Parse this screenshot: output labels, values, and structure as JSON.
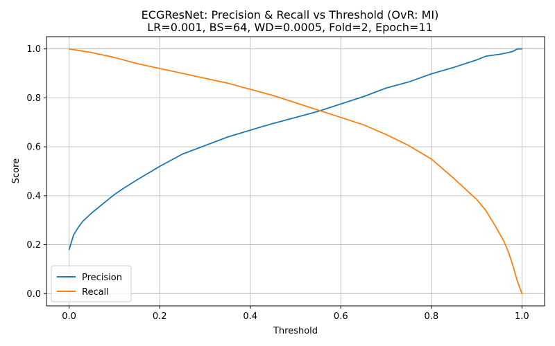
{
  "chart_data": {
    "type": "line",
    "title": "ECGResNet: Precision & Recall vs Threshold (OvR: MI)",
    "subtitle": "LR=0.001, BS=64, WD=0.0005, Fold=2, Epoch=11",
    "xlabel": "Threshold",
    "ylabel": "Score",
    "xlim": [
      -0.05,
      1.05
    ],
    "ylim": [
      -0.05,
      1.05
    ],
    "xticks": [
      "0.0",
      "0.2",
      "0.4",
      "0.6",
      "0.8",
      "1.0"
    ],
    "yticks": [
      "0.0",
      "0.2",
      "0.4",
      "0.6",
      "0.8",
      "1.0"
    ],
    "grid": true,
    "legend_position": "lower-left",
    "series": [
      {
        "name": "Precision",
        "color": "#1f77b4",
        "x": [
          0.0,
          0.01,
          0.02,
          0.03,
          0.05,
          0.08,
          0.1,
          0.12,
          0.15,
          0.2,
          0.25,
          0.3,
          0.35,
          0.4,
          0.45,
          0.5,
          0.55,
          0.6,
          0.65,
          0.7,
          0.75,
          0.8,
          0.85,
          0.9,
          0.92,
          0.95,
          0.97,
          0.98,
          0.99,
          1.0
        ],
        "y": [
          0.18,
          0.24,
          0.27,
          0.295,
          0.33,
          0.375,
          0.405,
          0.43,
          0.465,
          0.52,
          0.57,
          0.605,
          0.64,
          0.668,
          0.695,
          0.72,
          0.745,
          0.775,
          0.805,
          0.84,
          0.865,
          0.898,
          0.925,
          0.955,
          0.97,
          0.978,
          0.985,
          0.99,
          1.0,
          1.0
        ]
      },
      {
        "name": "Recall",
        "color": "#ff7f0e",
        "x": [
          0.0,
          0.05,
          0.1,
          0.15,
          0.2,
          0.25,
          0.3,
          0.35,
          0.4,
          0.45,
          0.5,
          0.55,
          0.6,
          0.65,
          0.7,
          0.75,
          0.8,
          0.85,
          0.9,
          0.92,
          0.94,
          0.96,
          0.97,
          0.98,
          0.99,
          1.0
        ],
        "y": [
          1.0,
          0.985,
          0.965,
          0.94,
          0.92,
          0.9,
          0.88,
          0.86,
          0.835,
          0.81,
          0.78,
          0.75,
          0.72,
          0.69,
          0.65,
          0.605,
          0.55,
          0.47,
          0.385,
          0.34,
          0.28,
          0.215,
          0.17,
          0.115,
          0.05,
          0.0
        ]
      }
    ]
  }
}
